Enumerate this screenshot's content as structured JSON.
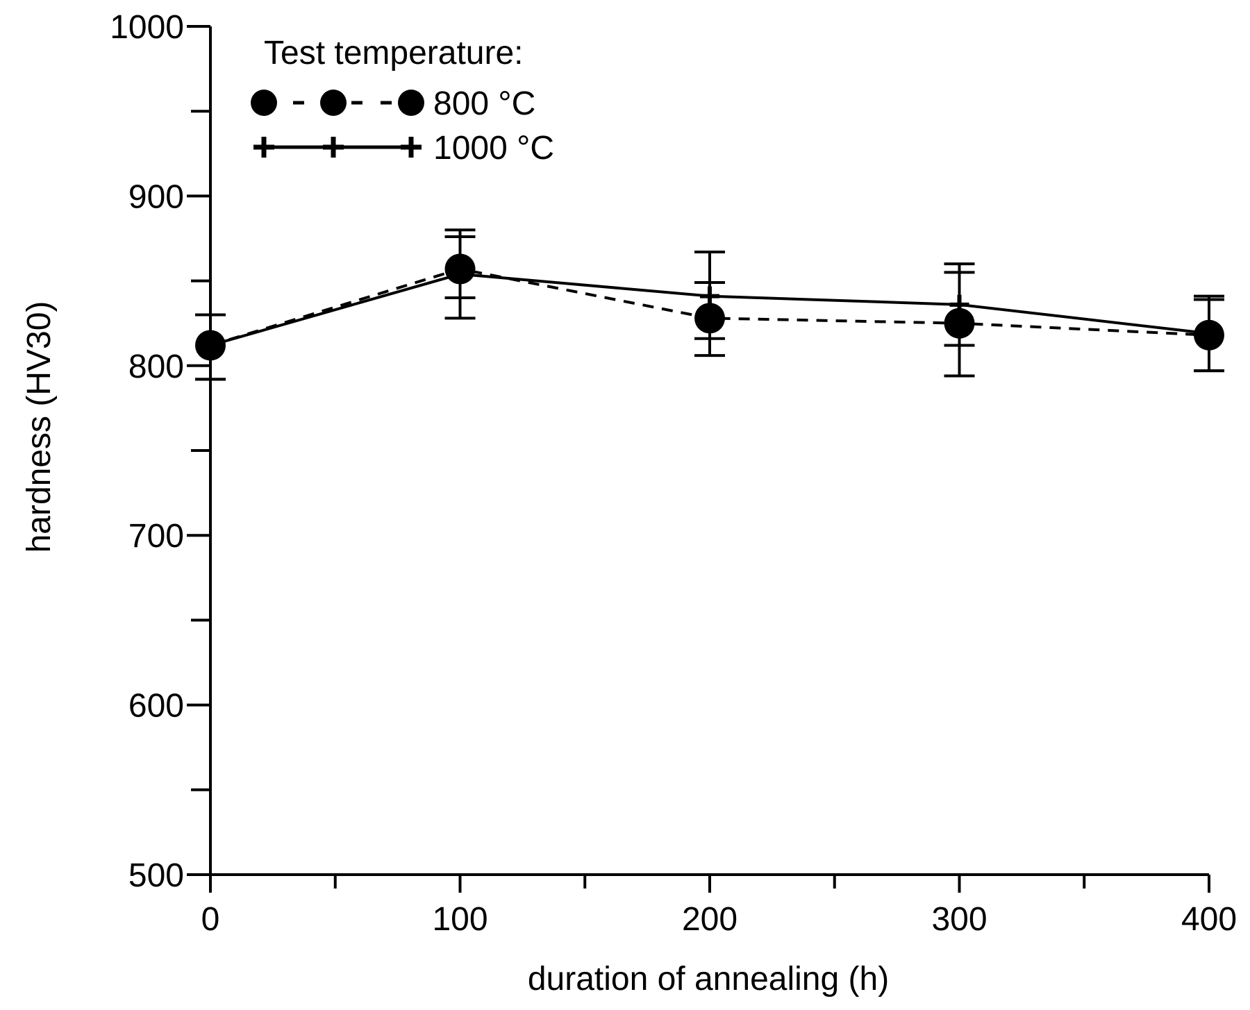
{
  "chart_data": {
    "type": "line",
    "title": "",
    "xlabel": "duration of annealing (h)",
    "ylabel": "hardness (HV30)",
    "xlim": [
      0,
      400
    ],
    "ylim": [
      500,
      1000
    ],
    "x_ticks": [
      0,
      100,
      200,
      300,
      400
    ],
    "x_tick_labels": [
      "0",
      "100",
      "200",
      "300",
      "400"
    ],
    "x_minor_ticks": [
      50,
      150,
      250,
      350
    ],
    "y_ticks": [
      500,
      600,
      700,
      800,
      900,
      1000
    ],
    "y_tick_labels": [
      "500",
      "600",
      "700",
      "800",
      "900",
      "1000"
    ],
    "y_minor_ticks": [
      550,
      650,
      750,
      850,
      950
    ],
    "grid": false,
    "legend": {
      "title": "Test temperature:",
      "position": "top-left"
    },
    "series": [
      {
        "name": "800 °C",
        "line_style": "dashed",
        "marker": "circle",
        "x": [
          0,
          100,
          200,
          300,
          400
        ],
        "y": [
          812,
          857,
          828,
          825,
          818
        ],
        "err_low": [
          792,
          828,
          806,
          794,
          797
        ],
        "err_high": [
          830,
          880,
          849,
          855,
          839
        ]
      },
      {
        "name": "1000 °C",
        "line_style": "solid",
        "marker": "plus",
        "x": [
          0,
          100,
          200,
          300,
          400
        ],
        "y": [
          812,
          854,
          841,
          836,
          819
        ],
        "err_low": [
          792,
          840,
          816,
          812,
          797
        ],
        "err_high": [
          830,
          876,
          867,
          860,
          841
        ]
      }
    ]
  }
}
